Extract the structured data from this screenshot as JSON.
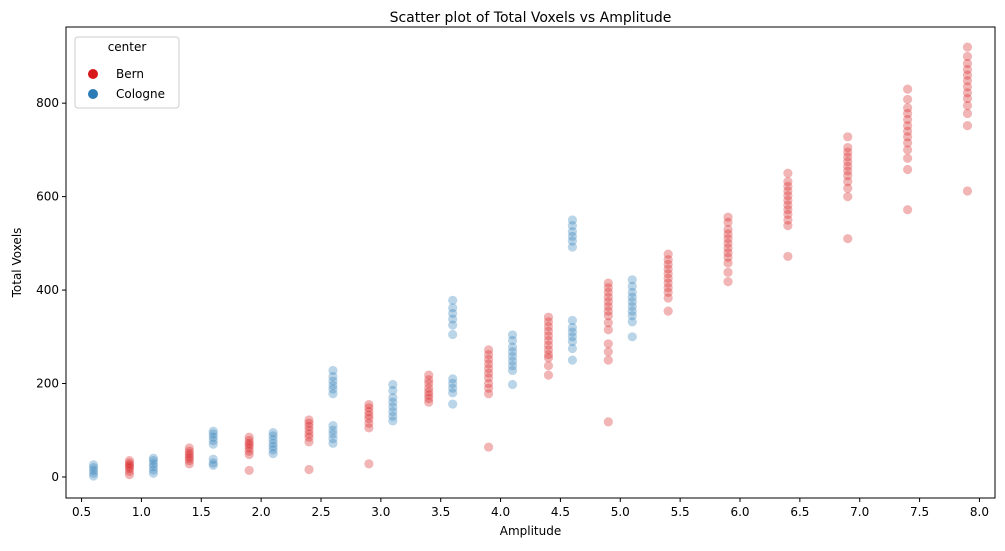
{
  "chart_data": {
    "type": "scatter",
    "title": "Scatter plot of Total Voxels vs Amplitude",
    "xlabel": "Amplitude",
    "ylabel": "Total Voxels",
    "xlim": [
      0.37,
      8.13
    ],
    "ylim": [
      -45,
      963
    ],
    "xticks": [
      0.5,
      1.0,
      1.5,
      2.0,
      2.5,
      3.0,
      3.5,
      4.0,
      4.5,
      5.0,
      5.5,
      6.0,
      6.5,
      7.0,
      7.5,
      8.0
    ],
    "xtick_labels": [
      "0.5",
      "1.0",
      "1.5",
      "2.0",
      "2.5",
      "3.0",
      "3.5",
      "4.0",
      "4.5",
      "5.0",
      "5.5",
      "6.0",
      "6.5",
      "7.0",
      "7.5",
      "8.0"
    ],
    "yticks": [
      0,
      200,
      400,
      600,
      800
    ],
    "ytick_labels": [
      "0",
      "200",
      "400",
      "600",
      "800"
    ],
    "grid": false,
    "legend": {
      "title": "center",
      "position": "top-left",
      "entries": [
        "Bern",
        "Cologne"
      ]
    },
    "series": [
      {
        "name": "Bern",
        "color": "#d7191c",
        "points": [
          [
            0.9,
            5
          ],
          [
            0.9,
            12
          ],
          [
            0.9,
            18
          ],
          [
            0.9,
            22
          ],
          [
            0.9,
            26
          ],
          [
            0.9,
            30
          ],
          [
            0.9,
            35
          ],
          [
            1.4,
            28
          ],
          [
            1.4,
            35
          ],
          [
            1.4,
            40
          ],
          [
            1.4,
            45
          ],
          [
            1.4,
            50
          ],
          [
            1.4,
            55
          ],
          [
            1.4,
            62
          ],
          [
            1.9,
            14
          ],
          [
            1.9,
            48
          ],
          [
            1.9,
            55
          ],
          [
            1.9,
            62
          ],
          [
            1.9,
            68
          ],
          [
            1.9,
            72
          ],
          [
            1.9,
            78
          ],
          [
            1.9,
            85
          ],
          [
            2.4,
            16
          ],
          [
            2.4,
            75
          ],
          [
            2.4,
            85
          ],
          [
            2.4,
            92
          ],
          [
            2.4,
            100
          ],
          [
            2.4,
            108
          ],
          [
            2.4,
            115
          ],
          [
            2.4,
            122
          ],
          [
            2.9,
            28
          ],
          [
            2.9,
            105
          ],
          [
            2.9,
            115
          ],
          [
            2.9,
            125
          ],
          [
            2.9,
            132
          ],
          [
            2.9,
            140
          ],
          [
            2.9,
            148
          ],
          [
            2.9,
            155
          ],
          [
            3.4,
            160
          ],
          [
            3.4,
            168
          ],
          [
            3.4,
            175
          ],
          [
            3.4,
            182
          ],
          [
            3.4,
            190
          ],
          [
            3.4,
            200
          ],
          [
            3.4,
            208
          ],
          [
            3.4,
            218
          ],
          [
            3.9,
            64
          ],
          [
            3.9,
            178
          ],
          [
            3.9,
            190
          ],
          [
            3.9,
            200
          ],
          [
            3.9,
            212
          ],
          [
            3.9,
            222
          ],
          [
            3.9,
            232
          ],
          [
            3.9,
            242
          ],
          [
            3.9,
            252
          ],
          [
            3.9,
            262
          ],
          [
            3.9,
            272
          ],
          [
            4.4,
            218
          ],
          [
            4.4,
            238
          ],
          [
            4.4,
            255
          ],
          [
            4.4,
            262
          ],
          [
            4.4,
            272
          ],
          [
            4.4,
            282
          ],
          [
            4.4,
            292
          ],
          [
            4.4,
            302
          ],
          [
            4.4,
            312
          ],
          [
            4.4,
            322
          ],
          [
            4.4,
            332
          ],
          [
            4.4,
            342
          ],
          [
            4.9,
            118
          ],
          [
            4.9,
            250
          ],
          [
            4.9,
            268
          ],
          [
            4.9,
            285
          ],
          [
            4.9,
            315
          ],
          [
            4.9,
            330
          ],
          [
            4.9,
            345
          ],
          [
            4.9,
            355
          ],
          [
            4.9,
            365
          ],
          [
            4.9,
            375
          ],
          [
            4.9,
            385
          ],
          [
            4.9,
            395
          ],
          [
            4.9,
            405
          ],
          [
            4.9,
            415
          ],
          [
            5.4,
            355
          ],
          [
            5.4,
            383
          ],
          [
            5.4,
            395
          ],
          [
            5.4,
            405
          ],
          [
            5.4,
            415
          ],
          [
            5.4,
            425
          ],
          [
            5.4,
            435
          ],
          [
            5.4,
            445
          ],
          [
            5.4,
            455
          ],
          [
            5.4,
            465
          ],
          [
            5.4,
            477
          ],
          [
            5.9,
            418
          ],
          [
            5.9,
            438
          ],
          [
            5.9,
            458
          ],
          [
            5.9,
            470
          ],
          [
            5.9,
            480
          ],
          [
            5.9,
            490
          ],
          [
            5.9,
            500
          ],
          [
            5.9,
            510
          ],
          [
            5.9,
            520
          ],
          [
            5.9,
            530
          ],
          [
            5.9,
            545
          ],
          [
            5.9,
            556
          ],
          [
            6.4,
            472
          ],
          [
            6.4,
            538
          ],
          [
            6.4,
            550
          ],
          [
            6.4,
            562
          ],
          [
            6.4,
            572
          ],
          [
            6.4,
            582
          ],
          [
            6.4,
            592
          ],
          [
            6.4,
            602
          ],
          [
            6.4,
            612
          ],
          [
            6.4,
            622
          ],
          [
            6.4,
            632
          ],
          [
            6.4,
            650
          ],
          [
            6.9,
            510
          ],
          [
            6.9,
            600
          ],
          [
            6.9,
            618
          ],
          [
            6.9,
            632
          ],
          [
            6.9,
            645
          ],
          [
            6.9,
            655
          ],
          [
            6.9,
            665
          ],
          [
            6.9,
            675
          ],
          [
            6.9,
            685
          ],
          [
            6.9,
            695
          ],
          [
            6.9,
            705
          ],
          [
            6.9,
            728
          ],
          [
            7.4,
            572
          ],
          [
            7.4,
            658
          ],
          [
            7.4,
            682
          ],
          [
            7.4,
            700
          ],
          [
            7.4,
            715
          ],
          [
            7.4,
            728
          ],
          [
            7.4,
            740
          ],
          [
            7.4,
            752
          ],
          [
            7.4,
            765
          ],
          [
            7.4,
            778
          ],
          [
            7.4,
            790
          ],
          [
            7.4,
            808
          ],
          [
            7.4,
            830
          ],
          [
            7.9,
            612
          ],
          [
            7.9,
            752
          ],
          [
            7.9,
            778
          ],
          [
            7.9,
            795
          ],
          [
            7.9,
            810
          ],
          [
            7.9,
            822
          ],
          [
            7.9,
            835
          ],
          [
            7.9,
            848
          ],
          [
            7.9,
            860
          ],
          [
            7.9,
            872
          ],
          [
            7.9,
            885
          ],
          [
            7.9,
            900
          ],
          [
            7.9,
            920
          ]
        ]
      },
      {
        "name": "Cologne",
        "color": "#2c7bb6",
        "points": [
          [
            0.6,
            2
          ],
          [
            0.6,
            8
          ],
          [
            0.6,
            14
          ],
          [
            0.6,
            20
          ],
          [
            0.6,
            26
          ],
          [
            1.1,
            8
          ],
          [
            1.1,
            15
          ],
          [
            1.1,
            22
          ],
          [
            1.1,
            28
          ],
          [
            1.1,
            35
          ],
          [
            1.1,
            40
          ],
          [
            1.6,
            25
          ],
          [
            1.6,
            30
          ],
          [
            1.6,
            38
          ],
          [
            1.6,
            70
          ],
          [
            1.6,
            78
          ],
          [
            1.6,
            85
          ],
          [
            1.6,
            92
          ],
          [
            1.6,
            98
          ],
          [
            2.1,
            50
          ],
          [
            2.1,
            58
          ],
          [
            2.1,
            65
          ],
          [
            2.1,
            72
          ],
          [
            2.1,
            80
          ],
          [
            2.1,
            88
          ],
          [
            2.1,
            95
          ],
          [
            2.6,
            72
          ],
          [
            2.6,
            82
          ],
          [
            2.6,
            92
          ],
          [
            2.6,
            100
          ],
          [
            2.6,
            110
          ],
          [
            2.6,
            178
          ],
          [
            2.6,
            188
          ],
          [
            2.6,
            196
          ],
          [
            2.6,
            205
          ],
          [
            2.6,
            215
          ],
          [
            2.6,
            228
          ],
          [
            3.1,
            120
          ],
          [
            3.1,
            130
          ],
          [
            3.1,
            140
          ],
          [
            3.1,
            150
          ],
          [
            3.1,
            160
          ],
          [
            3.1,
            170
          ],
          [
            3.1,
            185
          ],
          [
            3.1,
            198
          ],
          [
            3.6,
            156
          ],
          [
            3.6,
            180
          ],
          [
            3.6,
            190
          ],
          [
            3.6,
            200
          ],
          [
            3.6,
            210
          ],
          [
            3.6,
            305
          ],
          [
            3.6,
            325
          ],
          [
            3.6,
            338
          ],
          [
            3.6,
            350
          ],
          [
            3.6,
            362
          ],
          [
            3.6,
            378
          ],
          [
            4.1,
            198
          ],
          [
            4.1,
            228
          ],
          [
            4.1,
            238
          ],
          [
            4.1,
            248
          ],
          [
            4.1,
            258
          ],
          [
            4.1,
            268
          ],
          [
            4.1,
            278
          ],
          [
            4.1,
            292
          ],
          [
            4.1,
            304
          ],
          [
            4.6,
            250
          ],
          [
            4.6,
            275
          ],
          [
            4.6,
            290
          ],
          [
            4.6,
            300
          ],
          [
            4.6,
            310
          ],
          [
            4.6,
            320
          ],
          [
            4.6,
            335
          ],
          [
            4.6,
            492
          ],
          [
            4.6,
            505
          ],
          [
            4.6,
            515
          ],
          [
            4.6,
            525
          ],
          [
            4.6,
            538
          ],
          [
            4.6,
            550
          ],
          [
            5.1,
            300
          ],
          [
            5.1,
            332
          ],
          [
            5.1,
            345
          ],
          [
            5.1,
            355
          ],
          [
            5.1,
            365
          ],
          [
            5.1,
            375
          ],
          [
            5.1,
            385
          ],
          [
            5.1,
            395
          ],
          [
            5.1,
            408
          ],
          [
            5.1,
            422
          ]
        ]
      }
    ]
  }
}
